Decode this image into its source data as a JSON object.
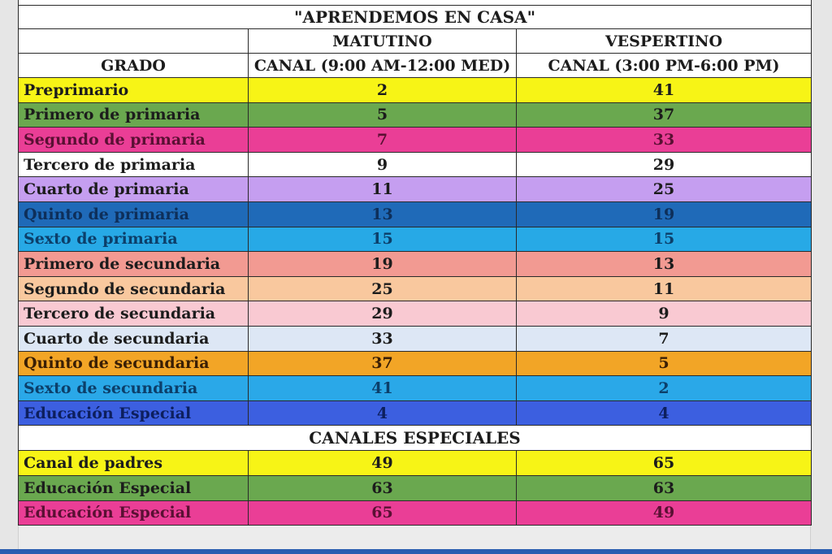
{
  "title": "\"APRENDEMOS EN CASA\"",
  "headers": {
    "grado": "GRADO",
    "matutino": "MATUTINO",
    "vespertino": "VESPERTINO",
    "canal_matutino": "CANAL (9:00 AM-12:00 MED)",
    "canal_vespertino": "CANAL (3:00 PM-6:00 PM)"
  },
  "rows": [
    {
      "grado": "Preprimario",
      "matutino": "2",
      "vespertino": "41",
      "bg": "#f7f416",
      "fg": "#1c1c1c"
    },
    {
      "grado": "Primero de primaria",
      "matutino": "5",
      "vespertino": "37",
      "bg": "#6aa84f",
      "fg": "#1c1c1c"
    },
    {
      "grado": "Segundo de primaria",
      "matutino": "7",
      "vespertino": "33",
      "bg": "#ea3e96",
      "fg": "#5a1033"
    },
    {
      "grado": "Tercero de primaria",
      "matutino": "9",
      "vespertino": "29",
      "bg": "#ffffff",
      "fg": "#1c1c1c"
    },
    {
      "grado": "Cuarto de primaria",
      "matutino": "11",
      "vespertino": "25",
      "bg": "#c59ef0",
      "fg": "#1c1c1c"
    },
    {
      "grado": "Quinto de primaria",
      "matutino": "13",
      "vespertino": "19",
      "bg": "#1f6ab8",
      "fg": "#0e2f5a"
    },
    {
      "grado": "Sexto de primaria",
      "matutino": "15",
      "vespertino": "15",
      "bg": "#27a9e6",
      "fg": "#0c3f6a"
    },
    {
      "grado": "Primero de secundaria",
      "matutino": "19",
      "vespertino": "13",
      "bg": "#f29a92",
      "fg": "#1c1c1c"
    },
    {
      "grado": "Segundo de secundaria",
      "matutino": "25",
      "vespertino": "11",
      "bg": "#f9c89e",
      "fg": "#1c1c1c"
    },
    {
      "grado": "Tercero de secundaria",
      "matutino": "29",
      "vespertino": "9",
      "bg": "#f9c9d2",
      "fg": "#1c1c1c"
    },
    {
      "grado": "Cuarto de secundaria",
      "matutino": "33",
      "vespertino": "7",
      "bg": "#dde7f5",
      "fg": "#1c1c1c"
    },
    {
      "grado": "Quinto de secundaria",
      "matutino": "37",
      "vespertino": "5",
      "bg": "#f2a526",
      "fg": "#3a1f05"
    },
    {
      "grado": "Sexto de secundaria",
      "matutino": "41",
      "vespertino": "2",
      "bg": "#2aa8e8",
      "fg": "#0c3f6a"
    },
    {
      "grado": "Educación Especial",
      "matutino": "4",
      "vespertino": "4",
      "bg": "#3c5fe0",
      "fg": "#0d1f5e"
    }
  ],
  "special_title": "CANALES ESPECIALES",
  "special_rows": [
    {
      "grado": "Canal de padres",
      "matutino": "49",
      "vespertino": "65",
      "bg": "#f7f416",
      "fg": "#1c1c1c"
    },
    {
      "grado": "Educación Especial",
      "matutino": "63",
      "vespertino": "63",
      "bg": "#6aa84f",
      "fg": "#1c1c1c"
    },
    {
      "grado": "Educación Especial",
      "matutino": "65",
      "vespertino": "49",
      "bg": "#ea3e96",
      "fg": "#5a1033"
    }
  ]
}
